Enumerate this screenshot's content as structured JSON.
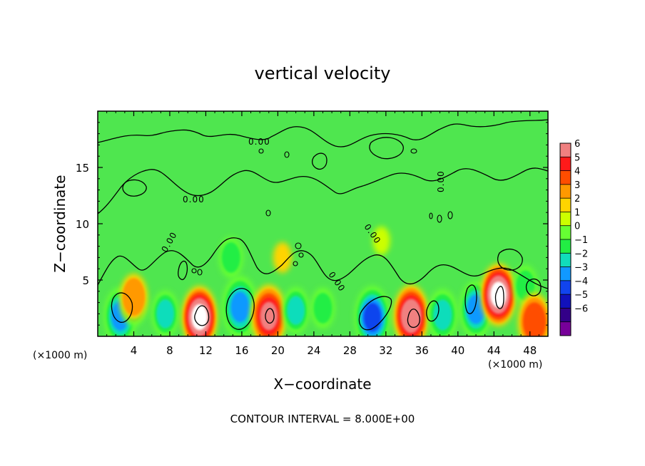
{
  "chart_data": {
    "type": "heatmap",
    "title": "vertical velocity",
    "xlabel": "X−coordinate",
    "ylabel": "Z−coordinate",
    "x_unit_left": "(×1000 m)",
    "x_unit_right": "(×1000 m)",
    "footer": "CONTOUR INTERVAL = 8.000E+00",
    "xlim": [
      0,
      50
    ],
    "ylim": [
      0,
      20
    ],
    "x_ticks": [
      4,
      8,
      12,
      16,
      20,
      24,
      28,
      32,
      36,
      40,
      44,
      48
    ],
    "x_tick_labels": [
      "4",
      "8",
      "12",
      "16",
      "20",
      "24",
      "28",
      "32",
      "36",
      "40",
      "44",
      "48"
    ],
    "y_ticks": [
      5,
      10,
      15
    ],
    "y_tick_labels": [
      "5",
      "10",
      "15"
    ],
    "contour_labels": [
      "0.00",
      "0.00",
      "0.00",
      "0.00",
      "0.00",
      "0.00"
    ],
    "colorbar": {
      "labels": [
        "6",
        "5",
        "4",
        "3",
        "2",
        "1",
        "0",
        "−1",
        "−2",
        "−3",
        "−4",
        "−5",
        "−6"
      ],
      "levels": [
        6,
        5,
        4,
        3,
        2,
        1,
        0,
        -1,
        -2,
        -3,
        -4,
        -5,
        -6
      ],
      "colors": [
        "#f08080",
        "#ff1a1a",
        "#ff4d00",
        "#ff9900",
        "#ffd400",
        "#ccff00",
        "#66ff33",
        "#22ee44",
        "#11ddbb",
        "#1199ff",
        "#1144ee",
        "#1111bb",
        "#330088",
        "#770099"
      ]
    },
    "background_color": "#4fe64f",
    "blobs": [
      {
        "x": 2.5,
        "z": 1.8,
        "v": -3.5
      },
      {
        "x": 4.0,
        "z": 3.0,
        "v": -2.5
      },
      {
        "x": 4.0,
        "z": 3.5,
        "v": 2.5
      },
      {
        "x": 7.5,
        "z": 2.0,
        "v": -2.5
      },
      {
        "x": 11.3,
        "z": 1.7,
        "v": 6.5
      },
      {
        "x": 15.8,
        "z": 2.6,
        "v": -4.0
      },
      {
        "x": 14.8,
        "z": 7.0,
        "v": -2.0
      },
      {
        "x": 19.0,
        "z": 1.8,
        "v": 5.0
      },
      {
        "x": 22.0,
        "z": 2.3,
        "v": -2.5
      },
      {
        "x": 25.0,
        "z": 2.5,
        "v": -2.0
      },
      {
        "x": 30.5,
        "z": 1.7,
        "v": -4.5
      },
      {
        "x": 34.8,
        "z": 1.8,
        "v": 5.8
      },
      {
        "x": 38.3,
        "z": 1.9,
        "v": -3.0
      },
      {
        "x": 42.0,
        "z": 2.4,
        "v": -3.5
      },
      {
        "x": 44.5,
        "z": 3.7,
        "v": 6.5
      },
      {
        "x": 47.5,
        "z": 4.5,
        "v": -2.0
      },
      {
        "x": 48.5,
        "z": 1.3,
        "v": 3.5
      },
      {
        "x": 20.5,
        "z": 7.0,
        "v": 1.0
      },
      {
        "x": 31.5,
        "z": 8.5,
        "v": 0.8
      }
    ]
  }
}
